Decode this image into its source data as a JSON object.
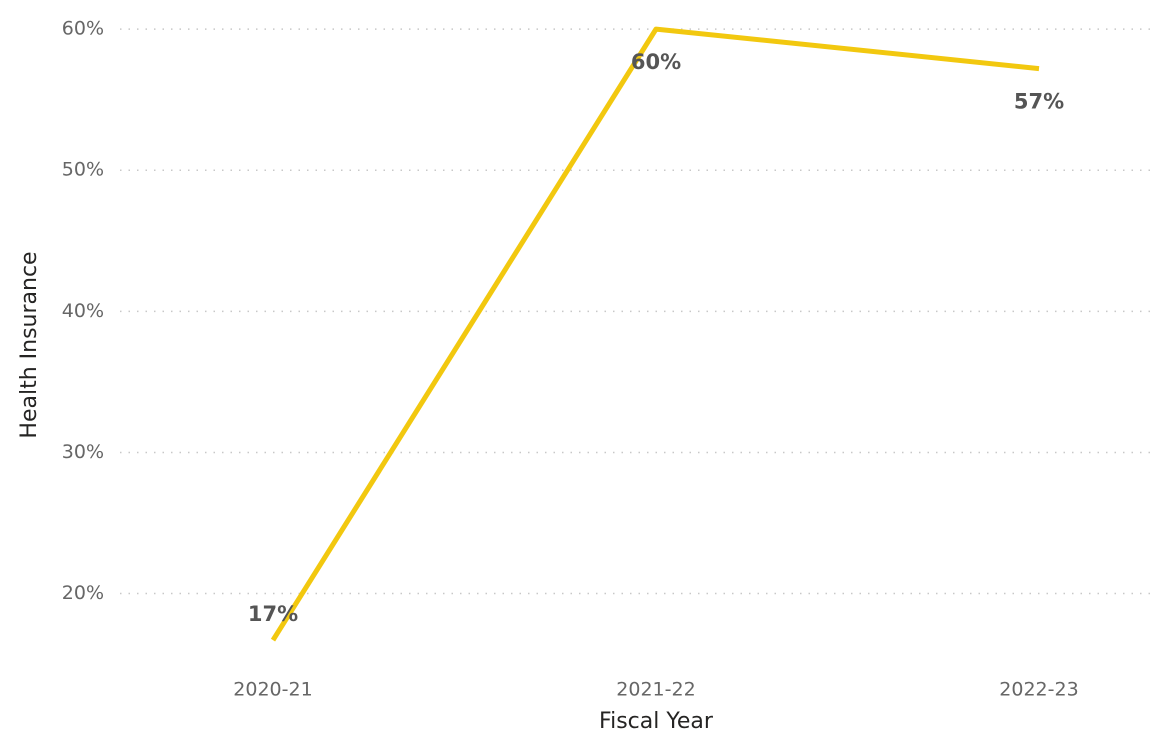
{
  "chart_data": {
    "type": "line",
    "x_label": "Fiscal Year",
    "y_label": "Health Insurance",
    "categories": [
      "2020-21",
      "2021-22",
      "2022-23"
    ],
    "series": [
      {
        "name": "Health Insurance",
        "color": "#F2C80F",
        "values": [
          16.7,
          60,
          57.2
        ],
        "value_labels": [
          "17%",
          "60%",
          "57%"
        ]
      }
    ],
    "ylim": [
      16,
      61
    ],
    "yticks": [
      {
        "value": 20,
        "label": "20%"
      },
      {
        "value": 30,
        "label": "30%"
      },
      {
        "value": 40,
        "label": "40%"
      },
      {
        "value": 50,
        "label": "50%"
      },
      {
        "value": 60,
        "label": "60%"
      }
    ],
    "grid": true
  }
}
